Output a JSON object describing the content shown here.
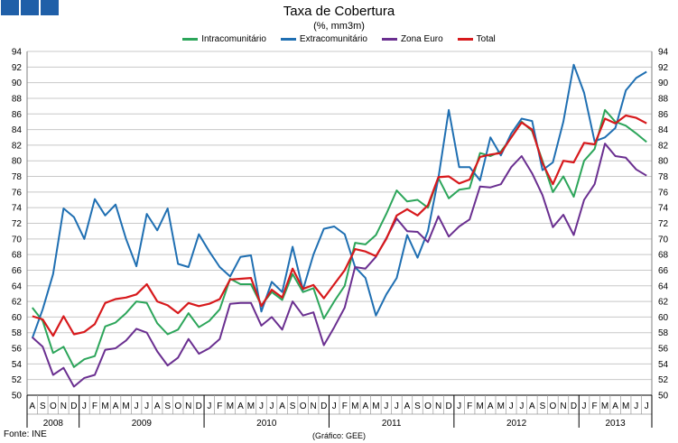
{
  "colors": {
    "logo": "#1f5fa8",
    "grid": "#c8c8c8",
    "axis": "#000000",
    "intracomunitario": "#2ca55a",
    "extracomunitario": "#1f6fb2",
    "zona_euro": "#6a2f90",
    "total": "#d7191c"
  },
  "source_label": "Fonte: INE",
  "credit_label": "(Gráfico: GEE)",
  "chart_data": {
    "type": "line",
    "title": "Taxa de Cobertura",
    "subtitle": "(%, mm3m)",
    "ylim": [
      50,
      94
    ],
    "y_ticks": [
      50,
      52,
      54,
      56,
      58,
      60,
      62,
      64,
      66,
      68,
      70,
      72,
      74,
      76,
      78,
      80,
      82,
      84,
      86,
      88,
      90,
      92,
      94
    ],
    "grid": true,
    "legend_position": "top",
    "month_labels": [
      "A",
      "S",
      "O",
      "N",
      "D",
      "J",
      "F",
      "M",
      "A",
      "M",
      "J",
      "J",
      "A",
      "S",
      "O",
      "N",
      "D",
      "J",
      "F",
      "M",
      "A",
      "M",
      "J",
      "J",
      "A",
      "S",
      "O",
      "N",
      "D",
      "J",
      "F",
      "M",
      "A",
      "M",
      "J",
      "J",
      "A",
      "S",
      "O",
      "N",
      "D",
      "J",
      "F",
      "M",
      "A",
      "M",
      "J",
      "J",
      "A",
      "S",
      "O",
      "N",
      "D",
      "J",
      "F",
      "M",
      "A",
      "M",
      "J",
      "J"
    ],
    "year_labels": [
      {
        "label": "2008",
        "start": 0,
        "end": 4
      },
      {
        "label": "2009",
        "start": 5,
        "end": 16
      },
      {
        "label": "2010",
        "start": 17,
        "end": 28
      },
      {
        "label": "2011",
        "start": 29,
        "end": 40
      },
      {
        "label": "2012",
        "start": 41,
        "end": 52
      },
      {
        "label": "2013",
        "start": 53,
        "end": 59
      }
    ],
    "series": [
      {
        "name": "Intracomunitário",
        "color_key": "intracomunitario",
        "values": [
          61.2,
          59.5,
          55.4,
          56.2,
          53.6,
          54.6,
          55.0,
          58.8,
          59.3,
          60.5,
          62.0,
          61.8,
          59.2,
          57.8,
          58.4,
          60.5,
          58.7,
          59.5,
          61.0,
          64.9,
          64.2,
          64.2,
          61.5,
          63.2,
          62.2,
          65.5,
          63.2,
          63.7,
          59.8,
          62.0,
          64.0,
          69.5,
          69.3,
          70.5,
          73.2,
          76.2,
          74.8,
          75.0,
          74.0,
          77.8,
          75.2,
          76.3,
          76.5,
          81.0,
          80.6,
          81.2,
          83.0,
          85.0,
          83.8,
          80.0,
          76.0,
          78.0,
          75.4,
          80.0,
          81.5,
          86.5,
          85.0,
          84.5,
          83.5,
          82.4
        ]
      },
      {
        "name": "Extracomunitário",
        "color_key": "extracomunitario",
        "values": [
          57.3,
          61.0,
          65.5,
          73.9,
          72.8,
          70.0,
          75.1,
          73.0,
          74.4,
          70.0,
          66.5,
          73.2,
          71.1,
          73.9,
          66.8,
          66.4,
          70.6,
          68.4,
          66.4,
          65.2,
          67.7,
          67.9,
          60.7,
          64.5,
          63.2,
          69.0,
          63.5,
          68.0,
          71.3,
          71.6,
          70.6,
          66.4,
          65.0,
          60.2,
          62.9,
          65.0,
          70.5,
          67.6,
          71.0,
          77.8,
          86.5,
          79.2,
          79.2,
          77.5,
          83.0,
          80.7,
          83.5,
          85.4,
          85.1,
          78.8,
          79.8,
          85.0,
          92.3,
          88.7,
          82.5,
          83.0,
          84.2,
          89.0,
          90.6,
          91.4
        ]
      },
      {
        "name": "Zona Euro",
        "color_key": "zona_euro",
        "values": [
          57.4,
          56.2,
          52.6,
          53.5,
          51.1,
          52.2,
          52.6,
          55.8,
          56.0,
          57.0,
          58.5,
          58.0,
          55.6,
          53.8,
          54.8,
          57.2,
          55.3,
          56.0,
          57.2,
          61.7,
          61.8,
          61.8,
          58.9,
          60.0,
          58.4,
          62.0,
          60.2,
          60.6,
          56.4,
          58.7,
          61.2,
          66.4,
          66.2,
          67.7,
          70.1,
          72.6,
          71.0,
          70.9,
          69.6,
          72.9,
          70.3,
          71.6,
          72.5,
          76.7,
          76.6,
          77.0,
          79.2,
          80.6,
          78.4,
          75.6,
          71.5,
          73.1,
          70.5,
          75.0,
          77.0,
          82.2,
          80.6,
          80.4,
          78.9,
          78.1
        ]
      },
      {
        "name": "Total",
        "color_key": "total",
        "values": [
          60.1,
          59.7,
          57.6,
          60.1,
          57.8,
          58.1,
          59.1,
          61.8,
          62.3,
          62.5,
          62.9,
          64.2,
          62.0,
          61.5,
          60.5,
          61.8,
          61.4,
          61.7,
          62.3,
          64.8,
          64.9,
          65.0,
          61.4,
          63.5,
          62.5,
          66.2,
          63.6,
          64.1,
          62.4,
          64.2,
          66.0,
          68.7,
          68.4,
          67.8,
          70.0,
          73.0,
          73.8,
          73.0,
          74.3,
          77.9,
          78.0,
          77.1,
          77.6,
          80.5,
          80.8,
          81.0,
          83.0,
          84.9,
          84.0,
          79.7,
          77.0,
          80.0,
          79.8,
          82.3,
          82.1,
          85.4,
          84.8,
          85.8,
          85.5,
          84.8
        ]
      }
    ]
  }
}
